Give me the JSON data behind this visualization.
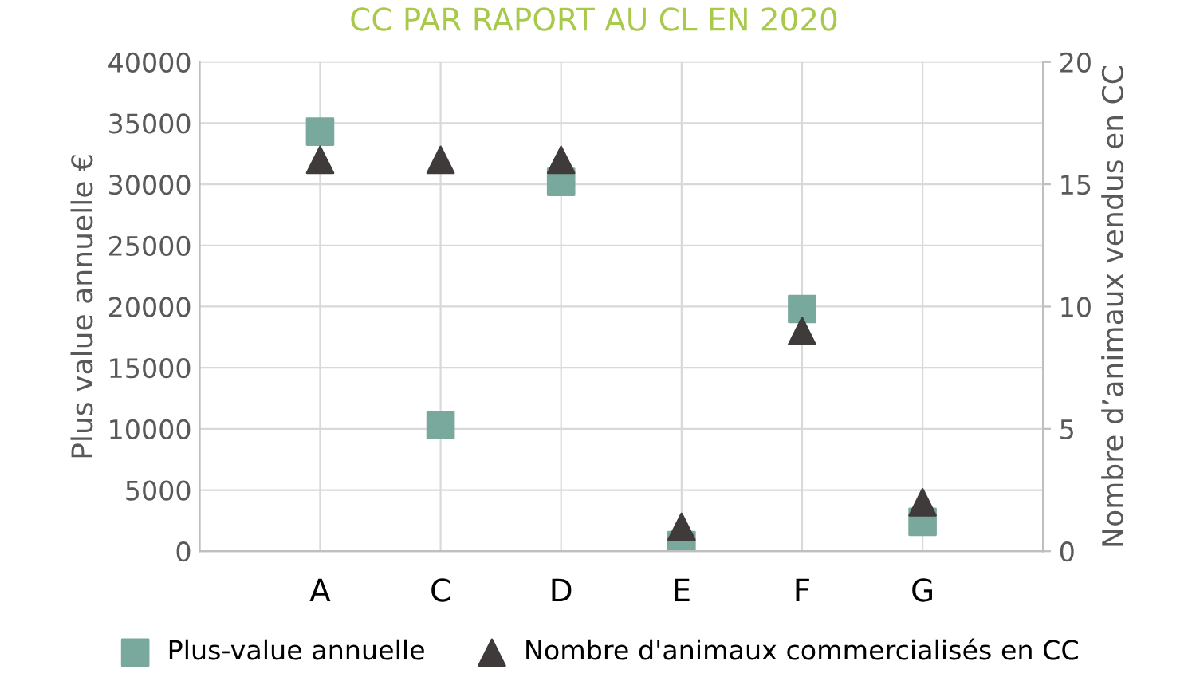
{
  "chart_data": {
    "type": "scatter",
    "title": "CC PAR RAPORT AU CL EN 2020",
    "ylabel": "Plus value annuelle €",
    "y2label": "Nombre d’animaux vendus en CC",
    "categories": [
      "A",
      "C",
      "D",
      "E",
      "F",
      "G"
    ],
    "series": [
      {
        "name": "Plus-value annuelle",
        "color": "#79a89c",
        "marker": "square",
        "values": [
          34300,
          10300,
          30200,
          500,
          19800,
          2400
        ]
      },
      {
        "name": "Nombre d'animaux commercialisés en CC",
        "color": "#403b3b",
        "marker": "triangle",
        "axis": "y2",
        "values": [
          16,
          16,
          16,
          1,
          9,
          2
        ]
      }
    ],
    "ylim": [
      0,
      40000
    ],
    "yticks": [
      0,
      5000,
      10000,
      15000,
      20000,
      25000,
      30000,
      35000,
      40000
    ],
    "y2lim": [
      0,
      20
    ],
    "y2ticks": [
      0,
      5,
      10,
      15,
      20
    ],
    "grid": true,
    "legend": "bottom"
  }
}
